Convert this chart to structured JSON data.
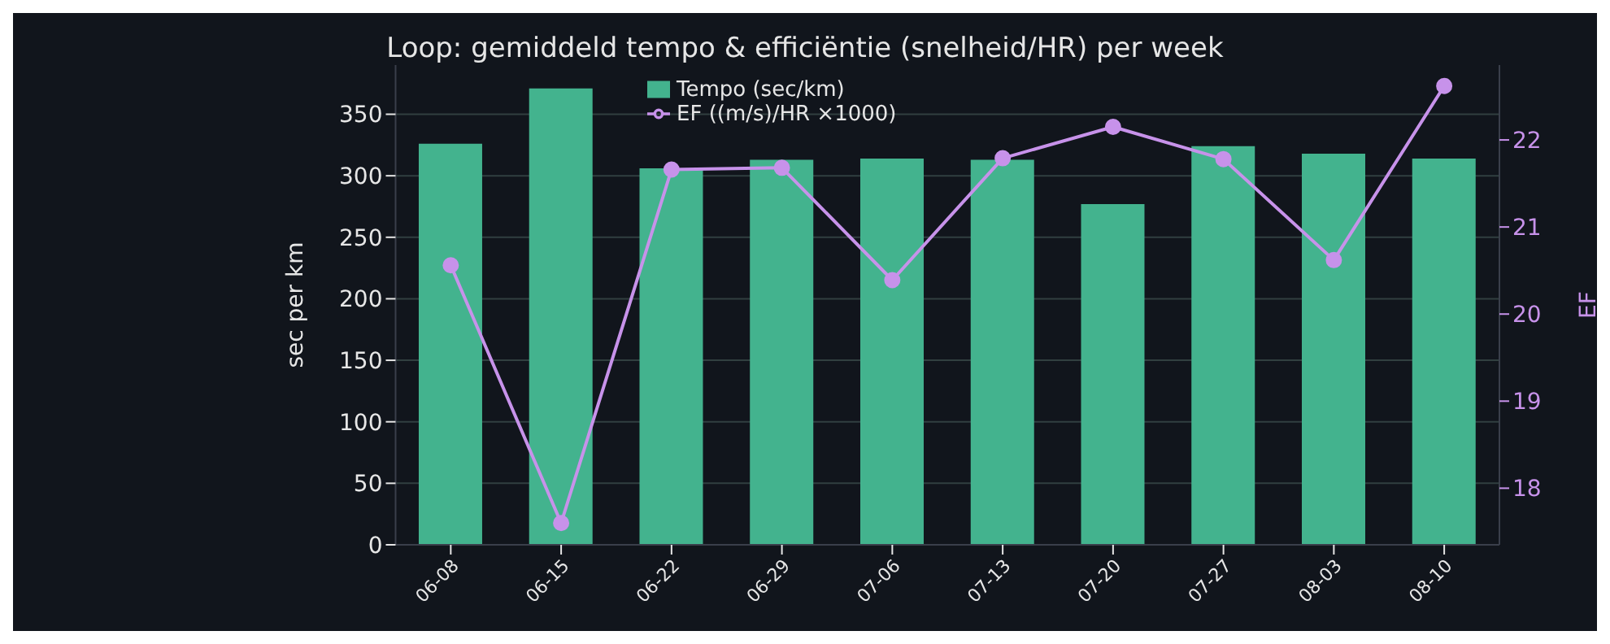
{
  "chart_data": {
    "type": "bar",
    "title": "Loop: gemiddeld tempo & efficiëntie (snelheid/HR) per week",
    "ylabel": "sec per km",
    "y2label": "EF",
    "categories": [
      "06-08",
      "06-15",
      "06-22",
      "06-29",
      "07-06",
      "07-13",
      "07-20",
      "07-27",
      "08-03",
      "08-10"
    ],
    "series": [
      {
        "name": "Tempo (sec/km)",
        "color": "#43b38e",
        "values": [
          326,
          371,
          306,
          313,
          314,
          313,
          277,
          324,
          318,
          314
        ]
      },
      {
        "name": "EF ((m/s)/HR ×1000)",
        "type": "line",
        "axis": "y2",
        "color": "#c792ea",
        "values": [
          20.56,
          17.6,
          21.66,
          21.68,
          20.39,
          21.79,
          22.15,
          21.78,
          20.62,
          22.62
        ]
      }
    ],
    "ylim": [
      0,
      390
    ],
    "yticks": [
      0,
      50,
      100,
      150,
      200,
      250,
      300,
      350
    ],
    "y2lim": [
      17.35,
      22.86
    ],
    "y2ticks": [
      18,
      19,
      20,
      21,
      22
    ],
    "grid": "y",
    "legend": "top",
    "marker": "circle",
    "line_style": "solid"
  }
}
